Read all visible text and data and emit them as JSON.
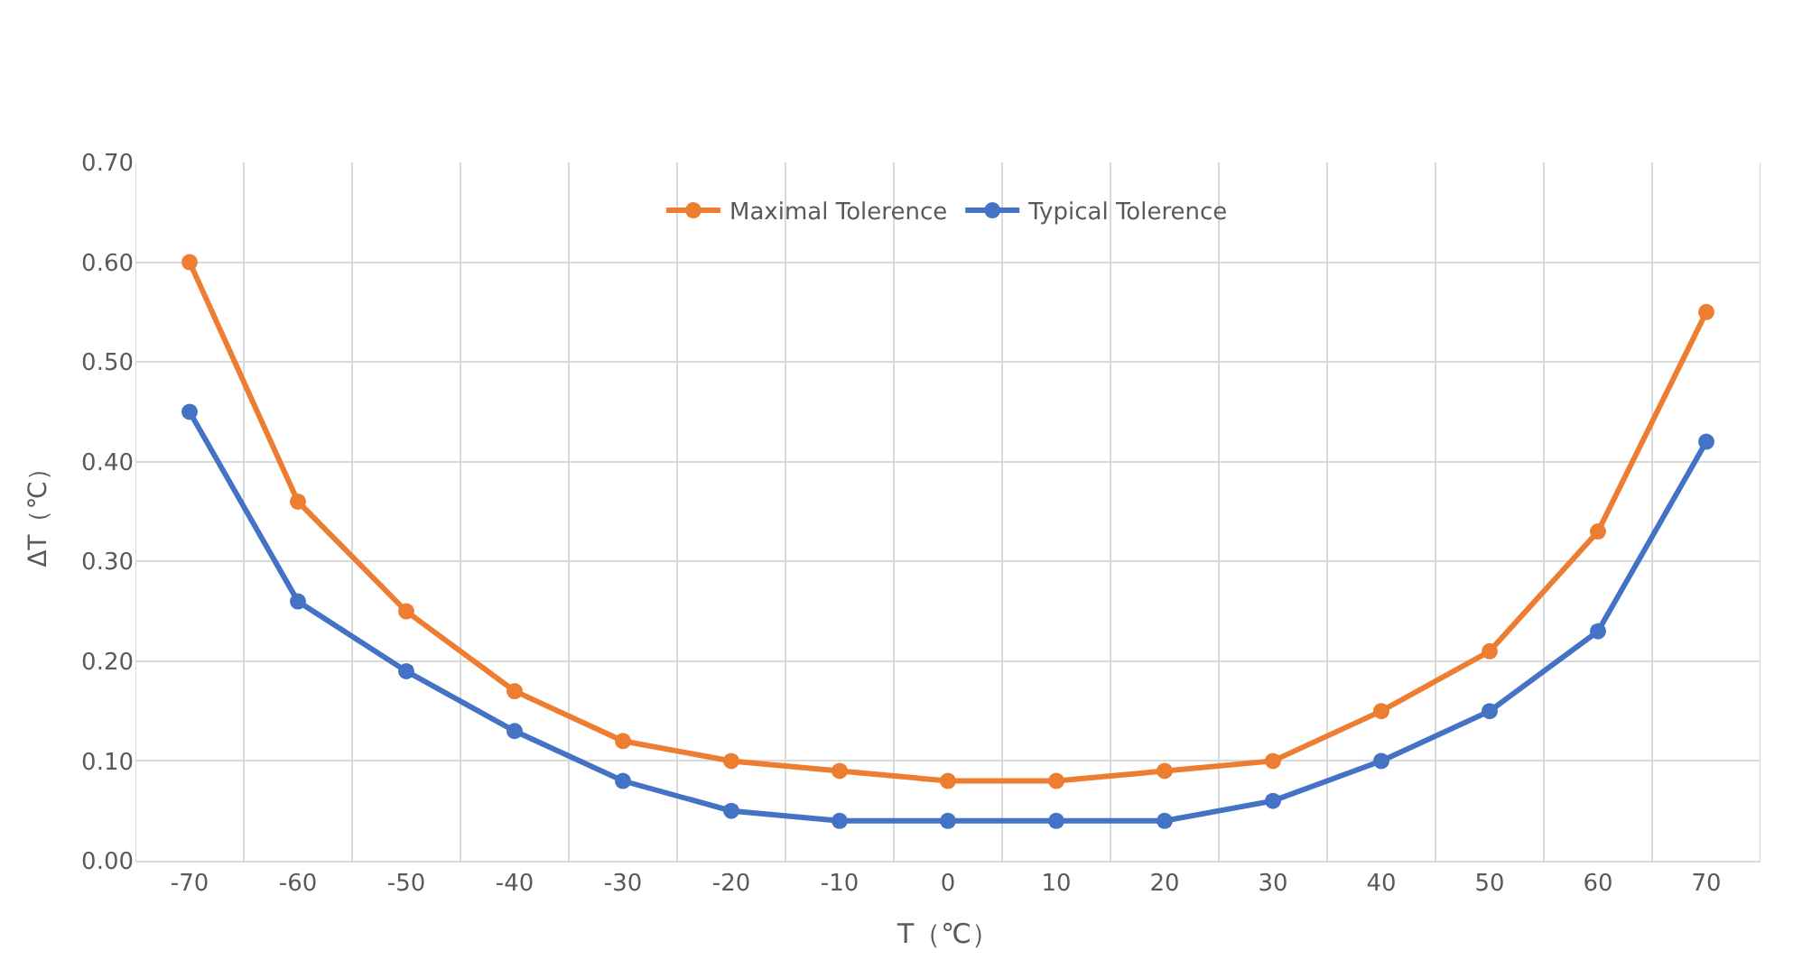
{
  "chart_data": {
    "type": "line",
    "xlabel": "T（℃）",
    "ylabel": "ΔT（℃）",
    "categories": [
      "-70",
      "-60",
      "-50",
      "-40",
      "-30",
      "-20",
      "-10",
      "0",
      "10",
      "20",
      "30",
      "40",
      "50",
      "60",
      "70"
    ],
    "series": [
      {
        "name": "Maximal Tolerence",
        "color": "#ed7d31",
        "values": [
          0.6,
          0.36,
          0.25,
          0.17,
          0.12,
          0.1,
          0.09,
          0.08,
          0.08,
          0.09,
          0.1,
          0.15,
          0.21,
          0.33,
          0.55
        ]
      },
      {
        "name": "Typical Tolerence",
        "color": "#4472c4",
        "values": [
          0.45,
          0.26,
          0.19,
          0.13,
          0.08,
          0.05,
          0.04,
          0.04,
          0.04,
          0.04,
          0.06,
          0.1,
          0.15,
          0.23,
          0.42
        ]
      }
    ],
    "ylim": [
      0,
      0.7
    ],
    "yticks": [
      {
        "value": 0,
        "label": "0.00"
      },
      {
        "value": 0.1,
        "label": "0.10"
      },
      {
        "value": 0.2,
        "label": "0.20"
      },
      {
        "value": 0.3,
        "label": "0.30"
      },
      {
        "value": 0.4,
        "label": "0.40"
      },
      {
        "value": 0.5,
        "label": "0.50"
      },
      {
        "value": 0.6,
        "label": "0.60"
      },
      {
        "value": 0.7,
        "label": "0.70"
      }
    ],
    "grid": true,
    "legend": "top",
    "marker": "circle",
    "line_style": "solid"
  }
}
